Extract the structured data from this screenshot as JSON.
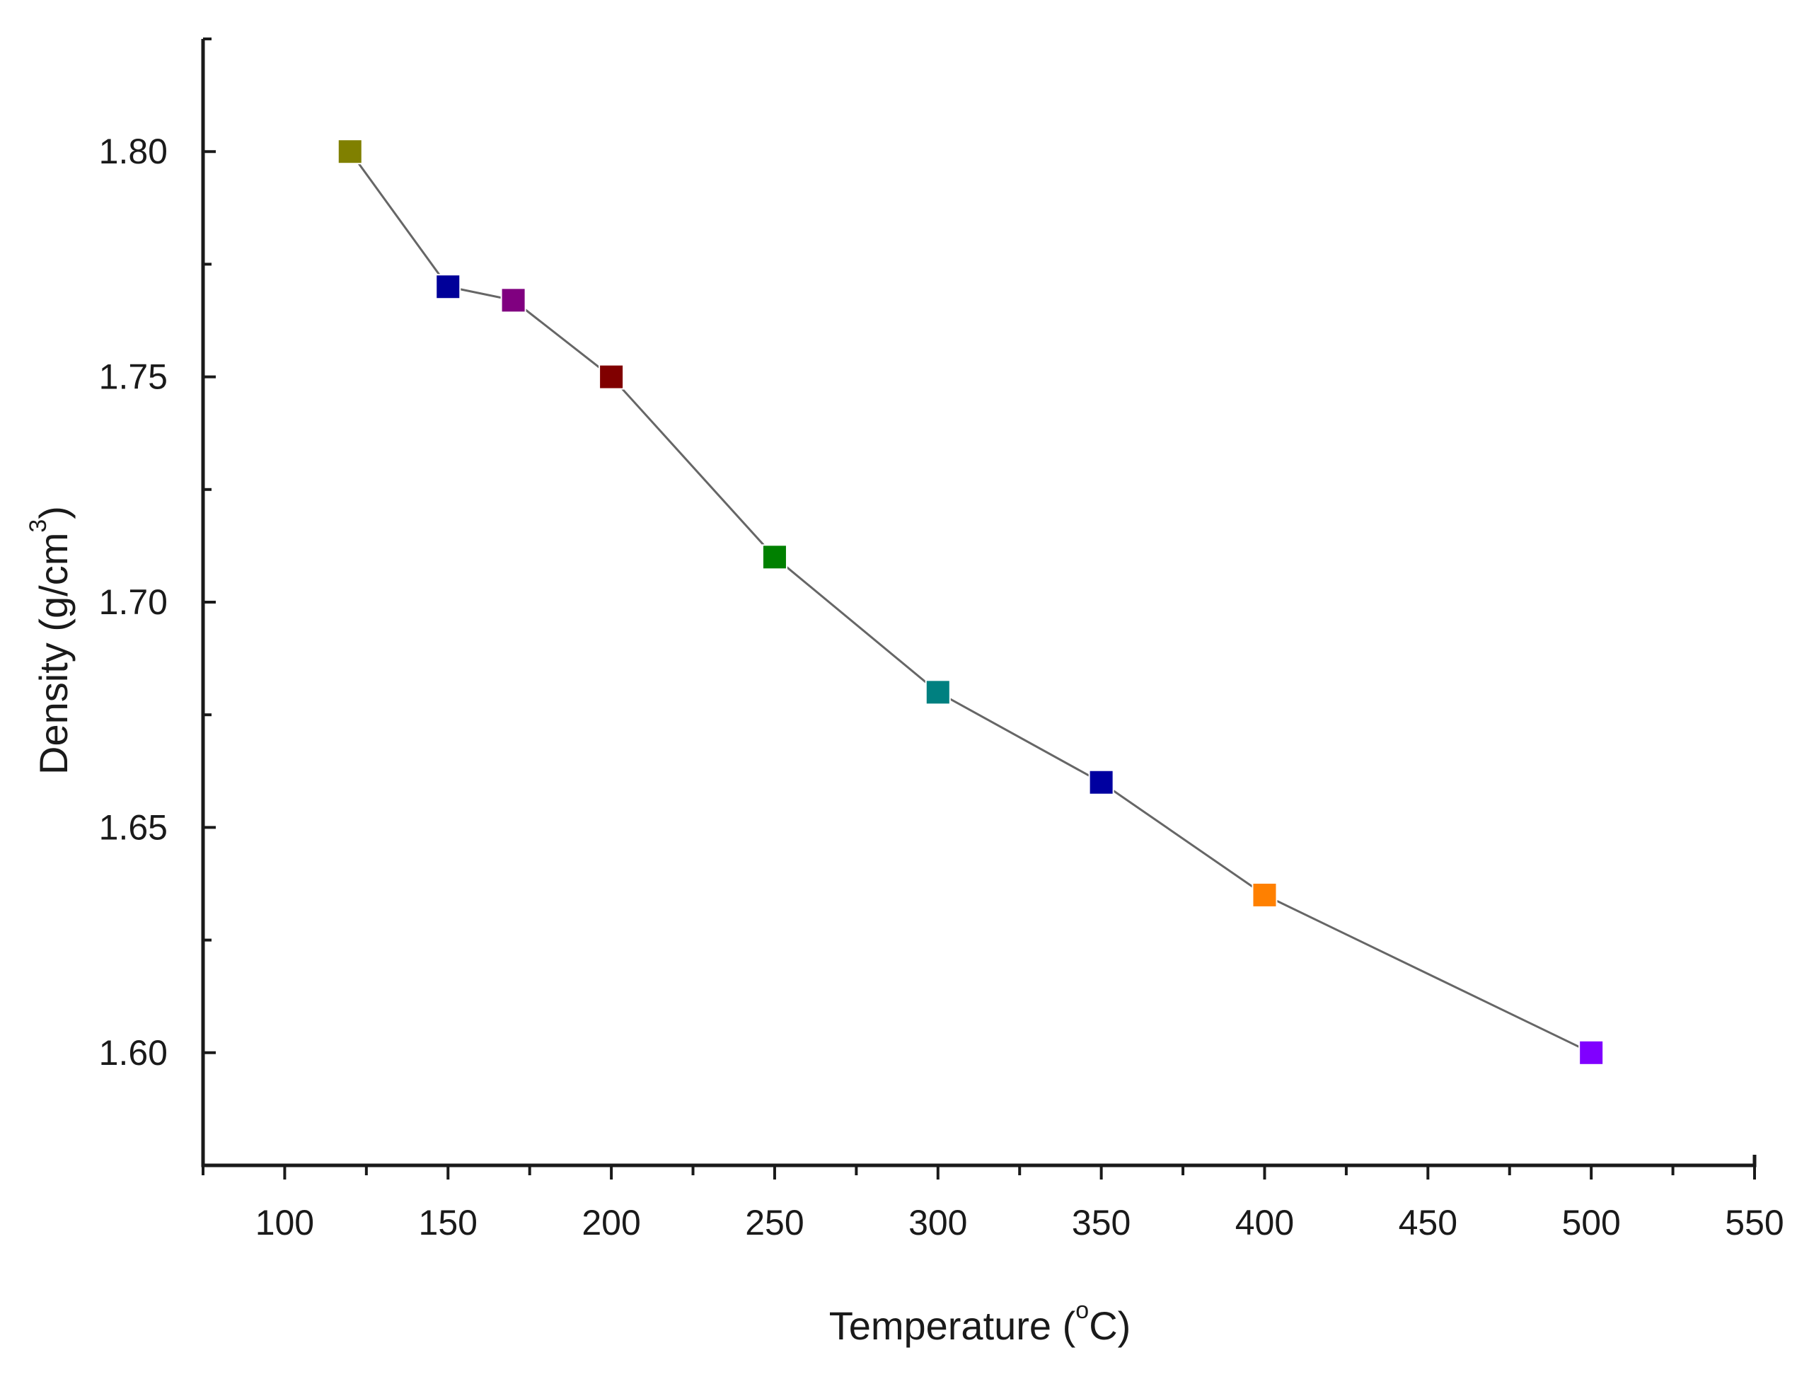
{
  "chart_data": {
    "type": "line",
    "title": "",
    "xlabel": {
      "text": "Temperature (",
      "sup": "o",
      "suffix": "C)"
    },
    "ylabel": {
      "text": "Density (g/cm",
      "sup": "3",
      "suffix": ")"
    },
    "xlim": [
      75,
      550
    ],
    "ylim": [
      1.575,
      1.825
    ],
    "x_ticks": [
      100,
      150,
      200,
      250,
      300,
      350,
      400,
      450,
      500,
      550
    ],
    "x_tick_labels": [
      "100",
      "150",
      "200",
      "250",
      "300",
      "350",
      "400",
      "450",
      "500",
      "550"
    ],
    "y_ticks": [
      1.6,
      1.65,
      1.7,
      1.75,
      1.8
    ],
    "y_tick_labels": [
      "1.60",
      "1.65",
      "1.70",
      "1.75",
      "1.80"
    ],
    "grid": false,
    "series": [
      {
        "name": "Density",
        "line_color": "#666666",
        "points": [
          {
            "x": 120,
            "y": 1.8,
            "color": "#808000"
          },
          {
            "x": 150,
            "y": 1.77,
            "color": "#000099"
          },
          {
            "x": 170,
            "y": 1.767,
            "color": "#800080"
          },
          {
            "x": 200,
            "y": 1.75,
            "color": "#800000"
          },
          {
            "x": 250,
            "y": 1.71,
            "color": "#008000"
          },
          {
            "x": 300,
            "y": 1.68,
            "color": "#008080"
          },
          {
            "x": 350,
            "y": 1.66,
            "color": "#0000a0"
          },
          {
            "x": 400,
            "y": 1.635,
            "color": "#ff8000"
          },
          {
            "x": 500,
            "y": 1.6,
            "color": "#8000ff"
          }
        ]
      }
    ]
  }
}
